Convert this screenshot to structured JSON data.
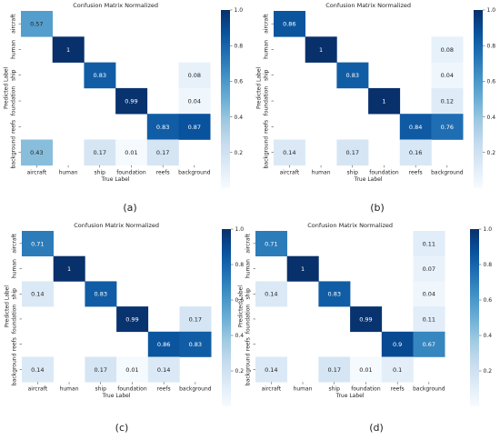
{
  "colormap": [
    "#f7fbff",
    "#deebf7",
    "#c6dbef",
    "#9ecae1",
    "#6baed6",
    "#4292c6",
    "#2171b5",
    "#08519c",
    "#08306b"
  ],
  "chart_data": [
    {
      "type": "heatmap",
      "title": "Confusion Matrix Normalized",
      "xlabel": "True Label",
      "ylabel": "Predicted Label",
      "caption": "(a)",
      "x_categories": [
        "aircraft",
        "human",
        "ship",
        "foundation",
        "reefs",
        "background"
      ],
      "y_categories": [
        "aircraft",
        "human",
        "ship",
        "foundation",
        "reefs",
        "background"
      ],
      "colorbar_ticks": [
        "0.2",
        "0.4",
        "0.6",
        "0.8",
        "1.0"
      ],
      "vmax": 1.0,
      "matrix": [
        [
          0.57,
          null,
          null,
          null,
          null,
          null
        ],
        [
          null,
          1.0,
          null,
          null,
          null,
          null
        ],
        [
          null,
          null,
          0.83,
          null,
          null,
          0.08
        ],
        [
          null,
          null,
          null,
          0.99,
          null,
          0.04
        ],
        [
          null,
          null,
          null,
          null,
          0.83,
          0.87
        ],
        [
          0.43,
          null,
          0.17,
          0.01,
          0.17,
          null
        ]
      ]
    },
    {
      "type": "heatmap",
      "title": "Confusion Matrix Normalized",
      "xlabel": "True Label",
      "ylabel": "Predicted Label",
      "caption": "(b)",
      "x_categories": [
        "aircraft",
        "human",
        "ship",
        "foundation",
        "reefs",
        "background"
      ],
      "y_categories": [
        "aircraft",
        "human",
        "ship",
        "foundation",
        "reefs",
        "background"
      ],
      "colorbar_ticks": [
        "0.2",
        "0.4",
        "0.6",
        "0.8",
        "1.0"
      ],
      "vmax": 1.0,
      "matrix": [
        [
          0.86,
          null,
          null,
          null,
          null,
          null
        ],
        [
          null,
          1.0,
          null,
          null,
          null,
          0.08
        ],
        [
          null,
          null,
          0.83,
          null,
          null,
          0.04
        ],
        [
          null,
          null,
          null,
          1.0,
          null,
          0.12
        ],
        [
          null,
          null,
          null,
          null,
          0.84,
          0.76
        ],
        [
          0.14,
          null,
          0.17,
          null,
          0.16,
          null
        ]
      ]
    },
    {
      "type": "heatmap",
      "title": "Confusion Matrix Normalized",
      "xlabel": "True Label",
      "ylabel": "Predicted Label",
      "caption": "(c)",
      "x_categories": [
        "aircraft",
        "human",
        "ship",
        "foundation",
        "reefs",
        "background"
      ],
      "y_categories": [
        "aircraft",
        "human",
        "ship",
        "foundation",
        "reefs",
        "background"
      ],
      "colorbar_ticks": [
        "0.2",
        "0.4",
        "0.6",
        "0.8",
        "1.0"
      ],
      "vmax": 1.0,
      "matrix": [
        [
          0.71,
          null,
          null,
          null,
          null,
          null
        ],
        [
          null,
          1.0,
          null,
          null,
          null,
          null
        ],
        [
          0.14,
          null,
          0.83,
          null,
          null,
          null
        ],
        [
          null,
          null,
          null,
          0.99,
          null,
          0.17
        ],
        [
          null,
          null,
          null,
          null,
          0.86,
          0.83
        ],
        [
          0.14,
          null,
          0.17,
          0.01,
          0.14,
          null
        ]
      ]
    },
    {
      "type": "heatmap",
      "title": "Confusion Matrix Normalized",
      "xlabel": "True Label",
      "ylabel": "Predicted Label",
      "caption": "(d)",
      "x_categories": [
        "aircraft",
        "human",
        "ship",
        "foundation",
        "reefs",
        "background"
      ],
      "y_categories": [
        "aircraft",
        "human",
        "ship",
        "foundation",
        "reefs",
        "background"
      ],
      "colorbar_ticks": [
        "0.2",
        "0.4",
        "0.6",
        "0.8",
        "1.0"
      ],
      "vmax": 1.0,
      "matrix": [
        [
          0.71,
          null,
          null,
          null,
          null,
          0.11
        ],
        [
          null,
          1.0,
          null,
          null,
          null,
          0.07
        ],
        [
          0.14,
          null,
          0.83,
          null,
          null,
          0.04
        ],
        [
          null,
          null,
          null,
          0.99,
          null,
          0.11
        ],
        [
          null,
          null,
          null,
          null,
          0.9,
          0.67
        ],
        [
          0.14,
          null,
          0.17,
          0.01,
          0.1,
          null
        ]
      ]
    }
  ]
}
